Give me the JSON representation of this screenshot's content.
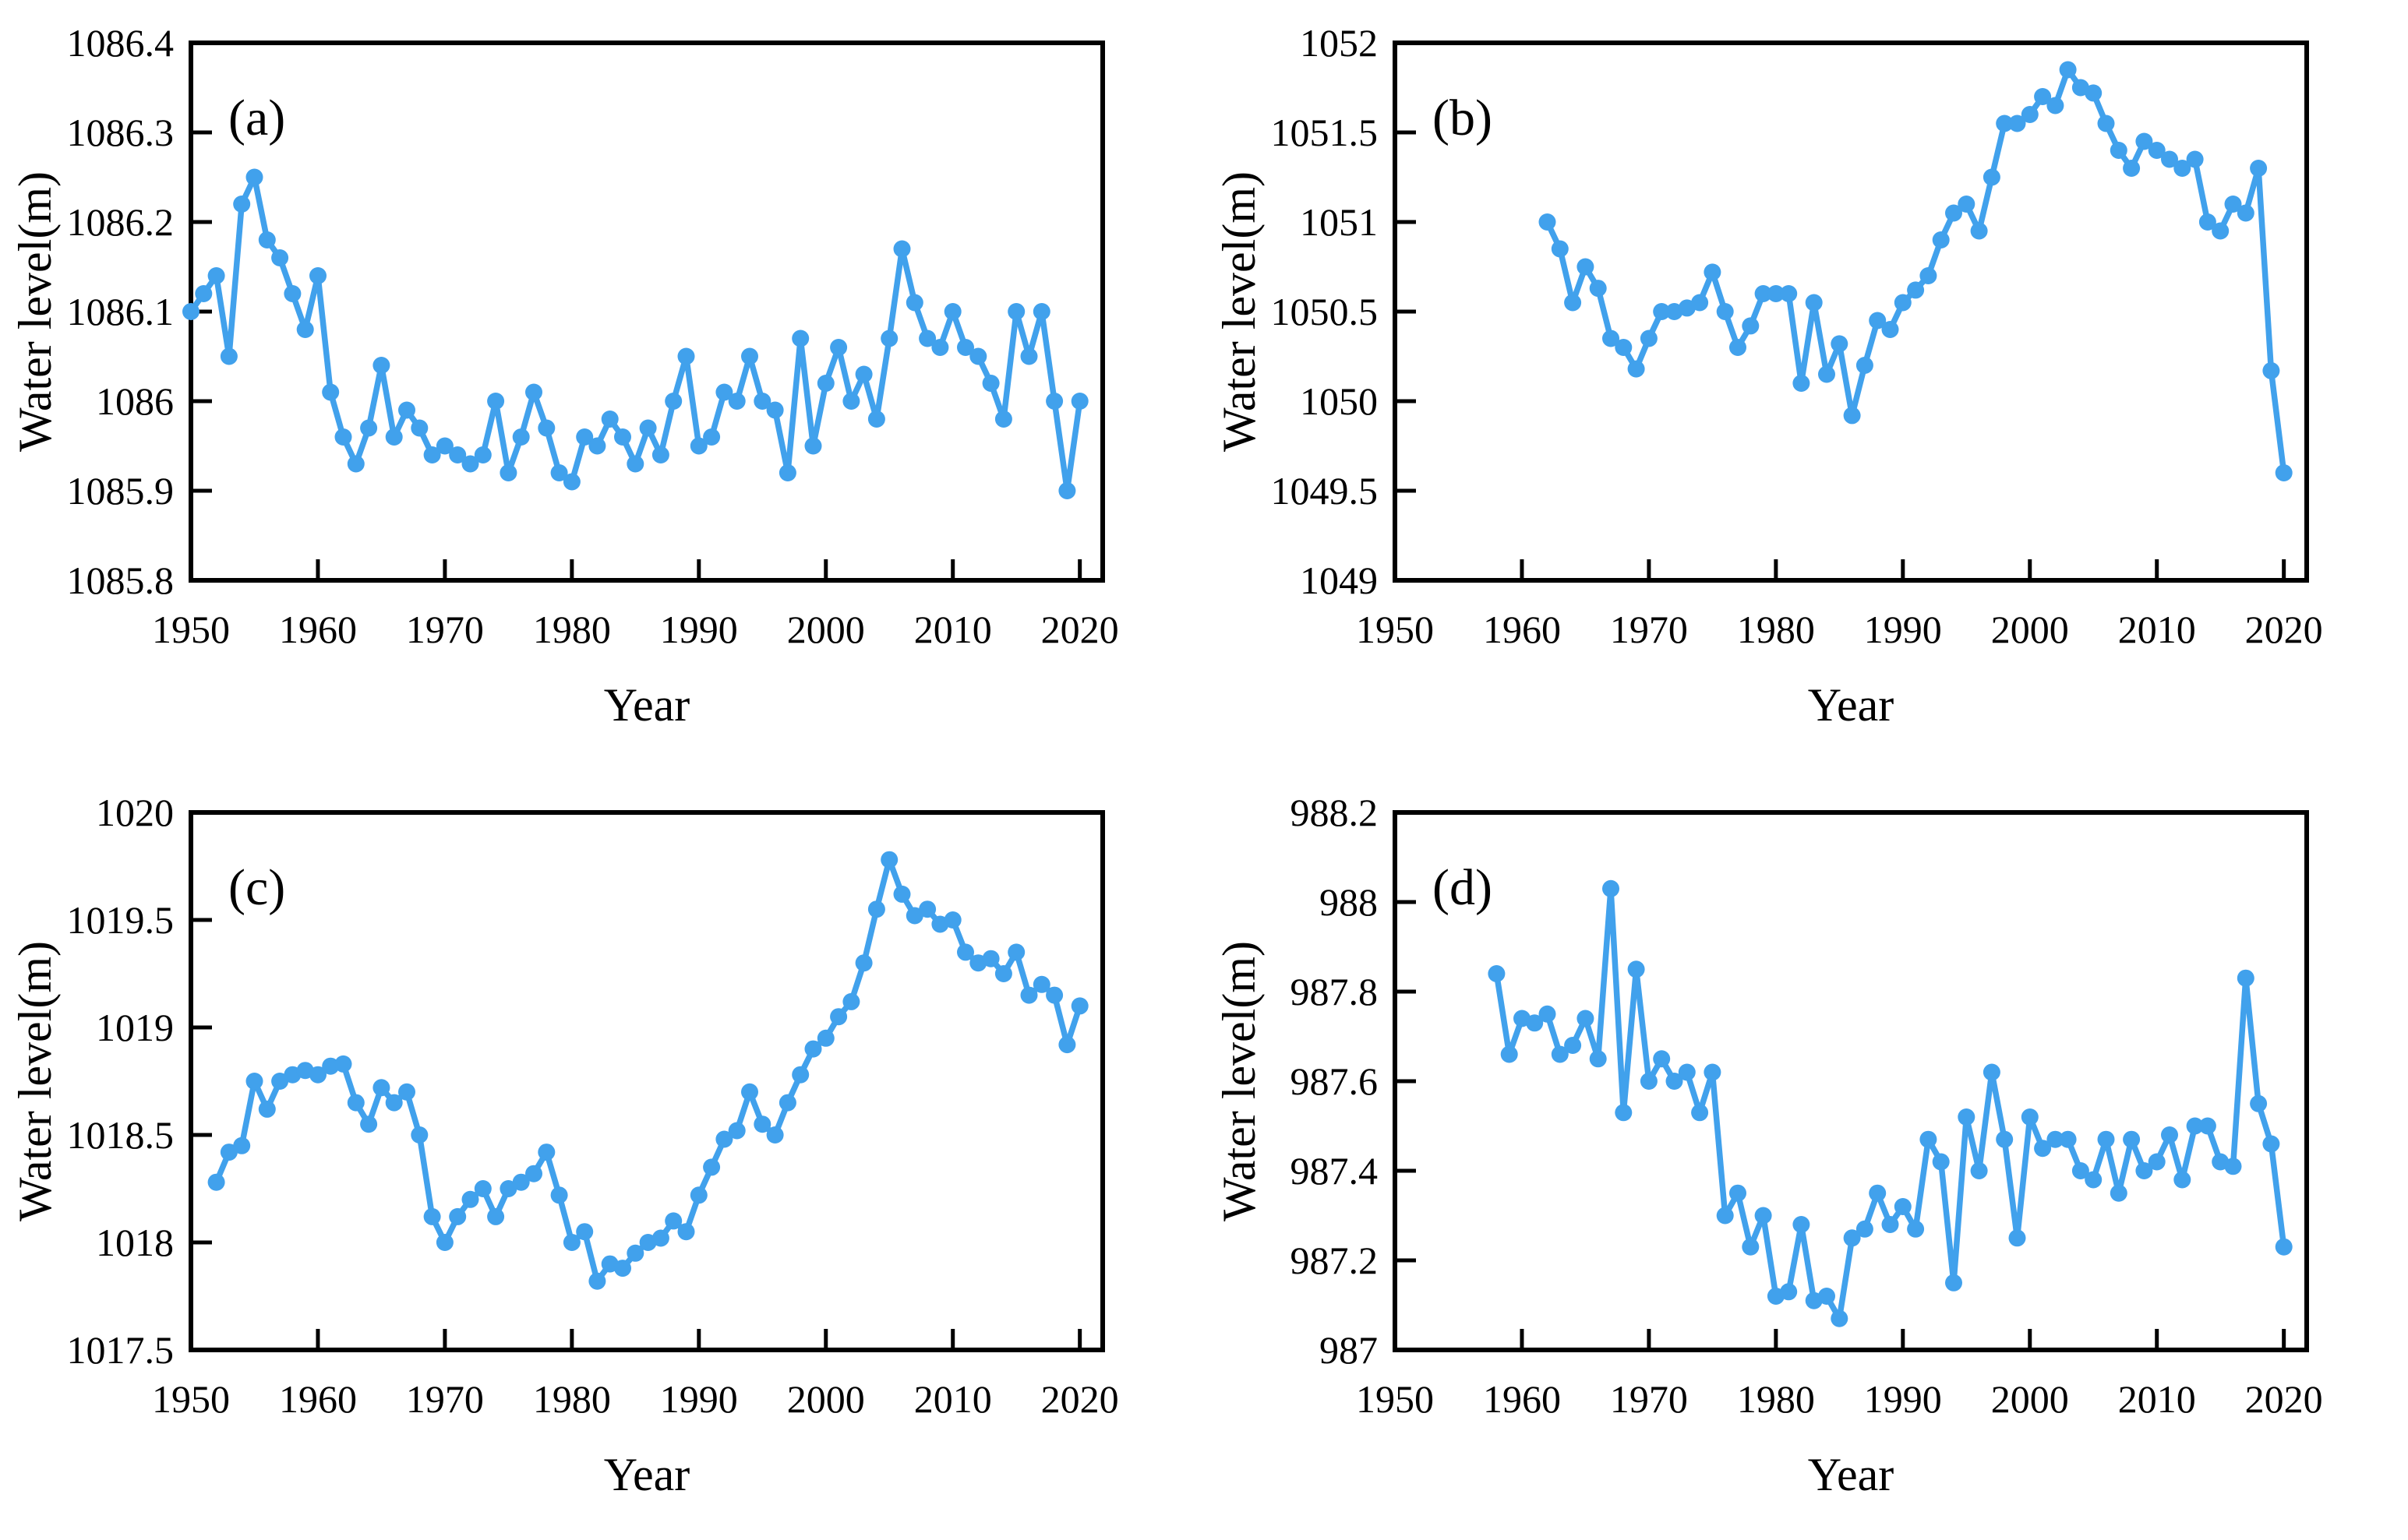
{
  "figure": {
    "background": "#ffffff",
    "axis_color": "#000000",
    "line_color": "#41A1EC",
    "marker": "circle",
    "grid": false,
    "legend": "none"
  },
  "chart_data": [
    {
      "type": "line",
      "panel_tag": "(a)",
      "title": "",
      "xlabel": "Year",
      "ylabel": "Water level(m)",
      "xlim": [
        1950,
        2021.8
      ],
      "ylim": [
        1085.8,
        1086.4
      ],
      "xtick_values": [
        1950,
        1960,
        1970,
        1980,
        1990,
        2000,
        2010,
        2020
      ],
      "xtick_labels": [
        "1950",
        "1960",
        "1970",
        "1980",
        "1990",
        "2000",
        "2010",
        "2020"
      ],
      "ytick_values": [
        1085.8,
        1085.9,
        1086.0,
        1086.1,
        1086.2,
        1086.3,
        1086.4
      ],
      "ytick_labels": [
        "1085.8",
        "1085.9",
        "1086",
        "1086.1",
        "1086.2",
        "1086.3",
        "1086.4"
      ],
      "x": [
        1950,
        1951,
        1952,
        1953,
        1954,
        1955,
        1956,
        1957,
        1958,
        1959,
        1960,
        1961,
        1962,
        1963,
        1964,
        1965,
        1966,
        1967,
        1968,
        1969,
        1970,
        1971,
        1972,
        1973,
        1974,
        1975,
        1976,
        1977,
        1978,
        1979,
        1980,
        1981,
        1982,
        1983,
        1984,
        1985,
        1986,
        1987,
        1988,
        1989,
        1990,
        1991,
        1992,
        1993,
        1994,
        1995,
        1996,
        1997,
        1998,
        1999,
        2000,
        2001,
        2002,
        2003,
        2004,
        2005,
        2006,
        2007,
        2008,
        2009,
        2010,
        2011,
        2012,
        2013,
        2014,
        2015,
        2016,
        2017,
        2018,
        2019,
        2020
      ],
      "values": [
        1086.1,
        1086.12,
        1086.14,
        1086.05,
        1086.22,
        1086.25,
        1086.18,
        1086.16,
        1086.12,
        1086.08,
        1086.14,
        1086.01,
        1085.96,
        1085.93,
        1085.97,
        1086.04,
        1085.96,
        1085.99,
        1085.97,
        1085.94,
        1085.95,
        1085.94,
        1085.93,
        1085.94,
        1086.0,
        1085.92,
        1085.96,
        1086.01,
        1085.97,
        1085.92,
        1085.91,
        1085.96,
        1085.95,
        1085.98,
        1085.96,
        1085.93,
        1085.97,
        1085.94,
        1086.0,
        1086.05,
        1085.95,
        1085.96,
        1086.01,
        1086.0,
        1086.05,
        1086.0,
        1085.99,
        1085.92,
        1086.07,
        1085.95,
        1086.02,
        1086.06,
        1086.0,
        1086.03,
        1085.98,
        1086.07,
        1086.17,
        1086.11,
        1086.07,
        1086.06,
        1086.1,
        1086.06,
        1086.05,
        1086.02,
        1085.98,
        1086.1,
        1086.05,
        1086.1,
        1086.0,
        1085.9,
        1086.0
      ]
    },
    {
      "type": "line",
      "panel_tag": "(b)",
      "title": "",
      "xlabel": "Year",
      "ylabel": "Water level(m)",
      "xlim": [
        1950,
        2021.8
      ],
      "ylim": [
        1049,
        1052
      ],
      "xtick_values": [
        1950,
        1960,
        1970,
        1980,
        1990,
        2000,
        2010,
        2020
      ],
      "xtick_labels": [
        "1950",
        "1960",
        "1970",
        "1980",
        "1990",
        "2000",
        "2010",
        "2020"
      ],
      "ytick_values": [
        1049,
        1049.5,
        1050,
        1050.5,
        1051,
        1051.5,
        1052
      ],
      "ytick_labels": [
        "1049",
        "1049.5",
        "1050",
        "1050.5",
        "1051",
        "1051.5",
        "1052"
      ],
      "x": [
        1962,
        1963,
        1964,
        1965,
        1966,
        1967,
        1968,
        1969,
        1970,
        1971,
        1972,
        1973,
        1974,
        1975,
        1976,
        1977,
        1978,
        1979,
        1980,
        1981,
        1982,
        1983,
        1984,
        1985,
        1986,
        1987,
        1988,
        1989,
        1990,
        1991,
        1992,
        1993,
        1994,
        1995,
        1996,
        1997,
        1998,
        1999,
        2000,
        2001,
        2002,
        2003,
        2004,
        2005,
        2006,
        2007,
        2008,
        2009,
        2010,
        2011,
        2012,
        2013,
        2014,
        2015,
        2016,
        2017,
        2018,
        2019,
        2020
      ],
      "values": [
        1051.0,
        1050.85,
        1050.55,
        1050.75,
        1050.63,
        1050.35,
        1050.3,
        1050.18,
        1050.35,
        1050.5,
        1050.5,
        1050.52,
        1050.55,
        1050.72,
        1050.5,
        1050.3,
        1050.42,
        1050.6,
        1050.6,
        1050.6,
        1050.1,
        1050.55,
        1050.15,
        1050.32,
        1049.92,
        1050.2,
        1050.45,
        1050.4,
        1050.55,
        1050.62,
        1050.7,
        1050.9,
        1051.05,
        1051.1,
        1050.95,
        1051.25,
        1051.55,
        1051.55,
        1051.6,
        1051.7,
        1051.65,
        1051.85,
        1051.75,
        1051.72,
        1051.55,
        1051.4,
        1051.3,
        1051.45,
        1051.4,
        1051.35,
        1051.3,
        1051.35,
        1051.0,
        1050.95,
        1051.1,
        1051.05,
        1051.3,
        1050.17,
        1049.6
      ]
    },
    {
      "type": "line",
      "panel_tag": "(c)",
      "title": "",
      "xlabel": "Year",
      "ylabel": "Water level(m)",
      "xlim": [
        1950,
        2021.8
      ],
      "ylim": [
        1017.5,
        1020
      ],
      "xtick_values": [
        1950,
        1960,
        1970,
        1980,
        1990,
        2000,
        2010,
        2020
      ],
      "xtick_labels": [
        "1950",
        "1960",
        "1970",
        "1980",
        "1990",
        "2000",
        "2010",
        "2020"
      ],
      "ytick_values": [
        1017.5,
        1018,
        1018.5,
        1019,
        1019.5,
        1020
      ],
      "ytick_labels": [
        "1017.5",
        "1018",
        "1018.5",
        "1019",
        "1019.5",
        "1020"
      ],
      "x": [
        1952,
        1953,
        1954,
        1955,
        1956,
        1957,
        1958,
        1959,
        1960,
        1961,
        1962,
        1963,
        1964,
        1965,
        1966,
        1967,
        1968,
        1969,
        1970,
        1971,
        1972,
        1973,
        1974,
        1975,
        1976,
        1977,
        1978,
        1979,
        1980,
        1981,
        1982,
        1983,
        1984,
        1985,
        1986,
        1987,
        1988,
        1989,
        1990,
        1991,
        1992,
        1993,
        1994,
        1995,
        1996,
        1997,
        1998,
        1999,
        2000,
        2001,
        2002,
        2003,
        2004,
        2005,
        2006,
        2007,
        2008,
        2009,
        2010,
        2011,
        2012,
        2013,
        2014,
        2015,
        2016,
        2017,
        2018,
        2019,
        2020
      ],
      "values": [
        1018.28,
        1018.42,
        1018.45,
        1018.75,
        1018.62,
        1018.75,
        1018.78,
        1018.8,
        1018.78,
        1018.82,
        1018.83,
        1018.65,
        1018.55,
        1018.72,
        1018.65,
        1018.7,
        1018.5,
        1018.12,
        1018.0,
        1018.12,
        1018.2,
        1018.25,
        1018.12,
        1018.25,
        1018.28,
        1018.32,
        1018.42,
        1018.22,
        1018.0,
        1018.05,
        1017.82,
        1017.9,
        1017.88,
        1017.95,
        1018.0,
        1018.02,
        1018.1,
        1018.05,
        1018.22,
        1018.35,
        1018.48,
        1018.52,
        1018.7,
        1018.55,
        1018.5,
        1018.65,
        1018.78,
        1018.9,
        1018.95,
        1019.05,
        1019.12,
        1019.3,
        1019.55,
        1019.78,
        1019.62,
        1019.52,
        1019.55,
        1019.48,
        1019.5,
        1019.35,
        1019.3,
        1019.32,
        1019.25,
        1019.35,
        1019.15,
        1019.2,
        1019.15,
        1018.92,
        1019.1
      ]
    },
    {
      "type": "line",
      "panel_tag": "(d)",
      "title": "",
      "xlabel": "Year",
      "ylabel": "Water level(m)",
      "xlim": [
        1950,
        2021.8
      ],
      "ylim": [
        987,
        988.2
      ],
      "xtick_values": [
        1950,
        1960,
        1970,
        1980,
        1990,
        2000,
        2010,
        2020
      ],
      "xtick_labels": [
        "1950",
        "1960",
        "1970",
        "1980",
        "1990",
        "2000",
        "2010",
        "2020"
      ],
      "ytick_values": [
        987,
        987.2,
        987.4,
        987.6,
        987.8,
        988,
        988.2
      ],
      "ytick_labels": [
        "987",
        "987.2",
        "987.4",
        "987.6",
        "987.8",
        "988",
        "988.2"
      ],
      "x": [
        1958,
        1959,
        1960,
        1961,
        1962,
        1963,
        1964,
        1965,
        1966,
        1967,
        1968,
        1969,
        1970,
        1971,
        1972,
        1973,
        1974,
        1975,
        1976,
        1977,
        1978,
        1979,
        1980,
        1981,
        1982,
        1983,
        1984,
        1985,
        1986,
        1987,
        1988,
        1989,
        1990,
        1991,
        1992,
        1993,
        1994,
        1995,
        1996,
        1997,
        1998,
        1999,
        2000,
        2001,
        2002,
        2003,
        2004,
        2005,
        2006,
        2007,
        2008,
        2009,
        2010,
        2011,
        2012,
        2013,
        2014,
        2015,
        2016,
        2017,
        2018,
        2019,
        2020
      ],
      "values": [
        987.84,
        987.66,
        987.74,
        987.73,
        987.75,
        987.66,
        987.68,
        987.74,
        987.65,
        988.03,
        987.53,
        987.85,
        987.6,
        987.65,
        987.6,
        987.62,
        987.53,
        987.62,
        987.3,
        987.35,
        987.23,
        987.3,
        987.12,
        987.13,
        987.28,
        987.11,
        987.12,
        987.07,
        987.25,
        987.27,
        987.35,
        987.28,
        987.32,
        987.27,
        987.47,
        987.42,
        987.15,
        987.52,
        987.4,
        987.62,
        987.47,
        987.25,
        987.52,
        987.45,
        987.47,
        987.47,
        987.4,
        987.38,
        987.47,
        987.35,
        987.47,
        987.4,
        987.42,
        987.48,
        987.38,
        987.5,
        987.5,
        987.42,
        987.41,
        987.83,
        987.55,
        987.46,
        987.23
      ]
    }
  ]
}
